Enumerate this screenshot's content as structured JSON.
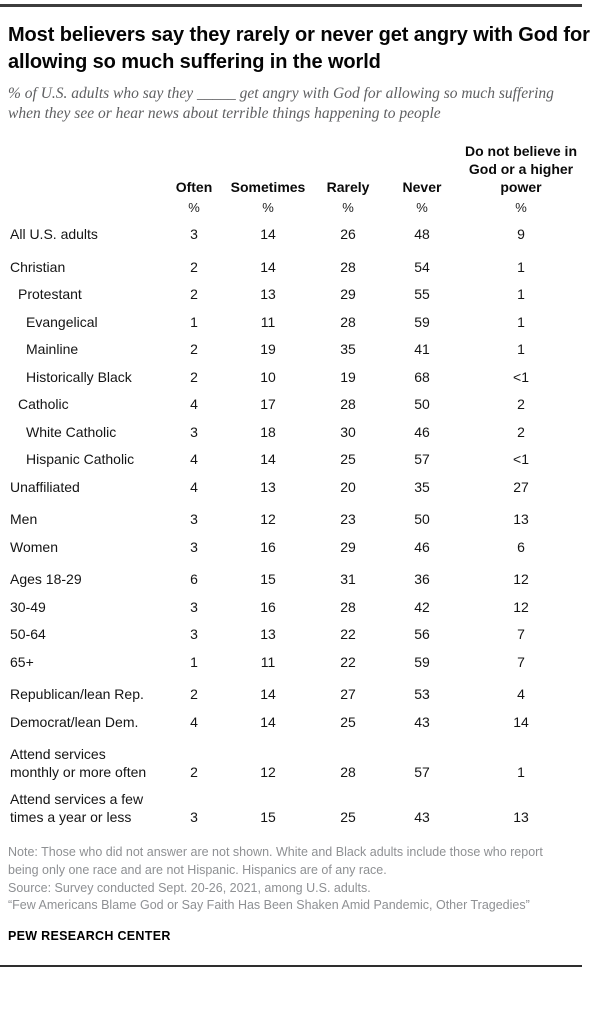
{
  "header": {
    "title": "Most believers say they rarely or never get angry with God for allowing so much suffering in the world",
    "subtitle": "% of U.S. adults who say they _____ get angry with God for allowing so much suffering when they see or hear news about terrible things happening to people"
  },
  "chart_data": {
    "type": "table",
    "title": "Most believers say they rarely or never get angry with God for allowing so much suffering in the world",
    "unit": "%",
    "columns": [
      "Often",
      "Sometimes",
      "Rarely",
      "Never",
      "Do not believe in God or a higher power"
    ],
    "percent_symbol": "%",
    "rows": [
      {
        "label": "All U.S. adults",
        "indent": 0,
        "group_start": false,
        "values": [
          "3",
          "14",
          "26",
          "48",
          "9"
        ]
      },
      {
        "label": "Christian",
        "indent": 0,
        "group_start": true,
        "values": [
          "2",
          "14",
          "28",
          "54",
          "1"
        ]
      },
      {
        "label": "Protestant",
        "indent": 1,
        "group_start": false,
        "values": [
          "2",
          "13",
          "29",
          "55",
          "1"
        ]
      },
      {
        "label": "Evangelical",
        "indent": 2,
        "group_start": false,
        "values": [
          "1",
          "11",
          "28",
          "59",
          "1"
        ]
      },
      {
        "label": "Mainline",
        "indent": 2,
        "group_start": false,
        "values": [
          "2",
          "19",
          "35",
          "41",
          "1"
        ]
      },
      {
        "label": "Historically Black",
        "indent": 2,
        "group_start": false,
        "values": [
          "2",
          "10",
          "19",
          "68",
          "<1"
        ]
      },
      {
        "label": "Catholic",
        "indent": 1,
        "group_start": false,
        "values": [
          "4",
          "17",
          "28",
          "50",
          "2"
        ]
      },
      {
        "label": "White Catholic",
        "indent": 2,
        "group_start": false,
        "values": [
          "3",
          "18",
          "30",
          "46",
          "2"
        ]
      },
      {
        "label": "Hispanic Catholic",
        "indent": 2,
        "group_start": false,
        "values": [
          "4",
          "14",
          "25",
          "57",
          "<1"
        ]
      },
      {
        "label": "Unaffiliated",
        "indent": 0,
        "group_start": false,
        "values": [
          "4",
          "13",
          "20",
          "35",
          "27"
        ]
      },
      {
        "label": "Men",
        "indent": 0,
        "group_start": true,
        "values": [
          "3",
          "12",
          "23",
          "50",
          "13"
        ]
      },
      {
        "label": "Women",
        "indent": 0,
        "group_start": false,
        "values": [
          "3",
          "16",
          "29",
          "46",
          "6"
        ]
      },
      {
        "label": "Ages 18-29",
        "indent": 0,
        "group_start": true,
        "values": [
          "6",
          "15",
          "31",
          "36",
          "12"
        ]
      },
      {
        "label": "30-49",
        "indent": 0,
        "group_start": false,
        "values": [
          "3",
          "16",
          "28",
          "42",
          "12"
        ]
      },
      {
        "label": "50-64",
        "indent": 0,
        "group_start": false,
        "values": [
          "3",
          "13",
          "22",
          "56",
          "7"
        ]
      },
      {
        "label": "65+",
        "indent": 0,
        "group_start": false,
        "values": [
          "1",
          "11",
          "22",
          "59",
          "7"
        ]
      },
      {
        "label": "Republican/lean Rep.",
        "indent": 0,
        "group_start": true,
        "values": [
          "2",
          "14",
          "27",
          "53",
          "4"
        ]
      },
      {
        "label": "Democrat/lean Dem.",
        "indent": 0,
        "group_start": false,
        "values": [
          "4",
          "14",
          "25",
          "43",
          "14"
        ]
      },
      {
        "label": "Attend services monthly or more often",
        "indent": 0,
        "group_start": true,
        "values": [
          "2",
          "12",
          "28",
          "57",
          "1"
        ]
      },
      {
        "label": "Attend services a few times a year or less",
        "indent": 0,
        "group_start": false,
        "values": [
          "3",
          "15",
          "25",
          "43",
          "13"
        ]
      }
    ]
  },
  "footer": {
    "note": "Note: Those who did not answer are not shown. White and Black adults include those who report being only one race and are not Hispanic. Hispanics are of any race.",
    "source": "Source: Survey conducted Sept. 20-26, 2021, among U.S. adults.",
    "report": "“Few Americans Blame God or Say Faith Has Been Shaken Amid Pandemic, Other Tragedies”",
    "brand": "PEW RESEARCH CENTER"
  },
  "colors": {
    "top_rule": "#3d3d3d",
    "bottom_rule": "#2e2e2e",
    "subtitle_text": "#5e5f61",
    "note_text": "#8e9093",
    "body_text": "#141414"
  }
}
